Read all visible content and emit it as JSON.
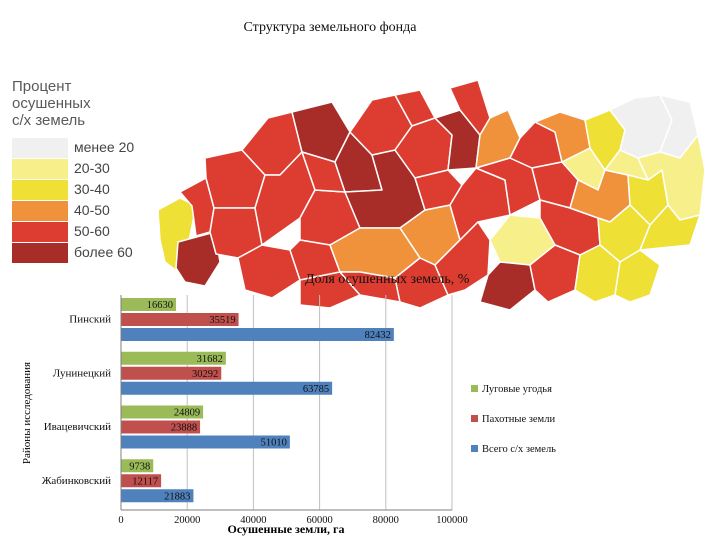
{
  "page_title": "Структура земельного фонда",
  "map": {
    "legend_title": [
      "Процент",
      "осушенных",
      "с/х земель"
    ],
    "legend": [
      {
        "label": "менее 20",
        "color": "#f0f0f0"
      },
      {
        "label": "20-30",
        "color": "#f7f08a"
      },
      {
        "label": "30-40",
        "color": "#eee035"
      },
      {
        "label": "40-50",
        "color": "#f0923c"
      },
      {
        "label": "50-60",
        "color": "#dd3c30"
      },
      {
        "label": "более 60",
        "color": "#a82c28"
      }
    ]
  },
  "chart_data": {
    "type": "bar",
    "orientation": "horizontal",
    "title": "Доля осушенных земель, %",
    "xlabel": "Осушенные земли, га",
    "ylabel": "Районы исследования",
    "categories": [
      "Пинский",
      "Лунинецкий",
      "Ивацевичский",
      "Жабинковский"
    ],
    "series": [
      {
        "name": "Луговые угодья",
        "color": "#9bbb59",
        "values": [
          16630,
          31682,
          24809,
          9738
        ]
      },
      {
        "name": "Пахотные земли",
        "color": "#c0504d",
        "values": [
          35519,
          30292,
          23888,
          12117
        ]
      },
      {
        "name": "Всего с/х земель",
        "color": "#4f81bd",
        "values": [
          82432,
          63785,
          51010,
          21883
        ]
      }
    ],
    "xlim": [
      0,
      100000
    ],
    "xticks": [
      0,
      20000,
      40000,
      60000,
      80000,
      100000
    ],
    "grid": true,
    "legend_position": "right"
  }
}
